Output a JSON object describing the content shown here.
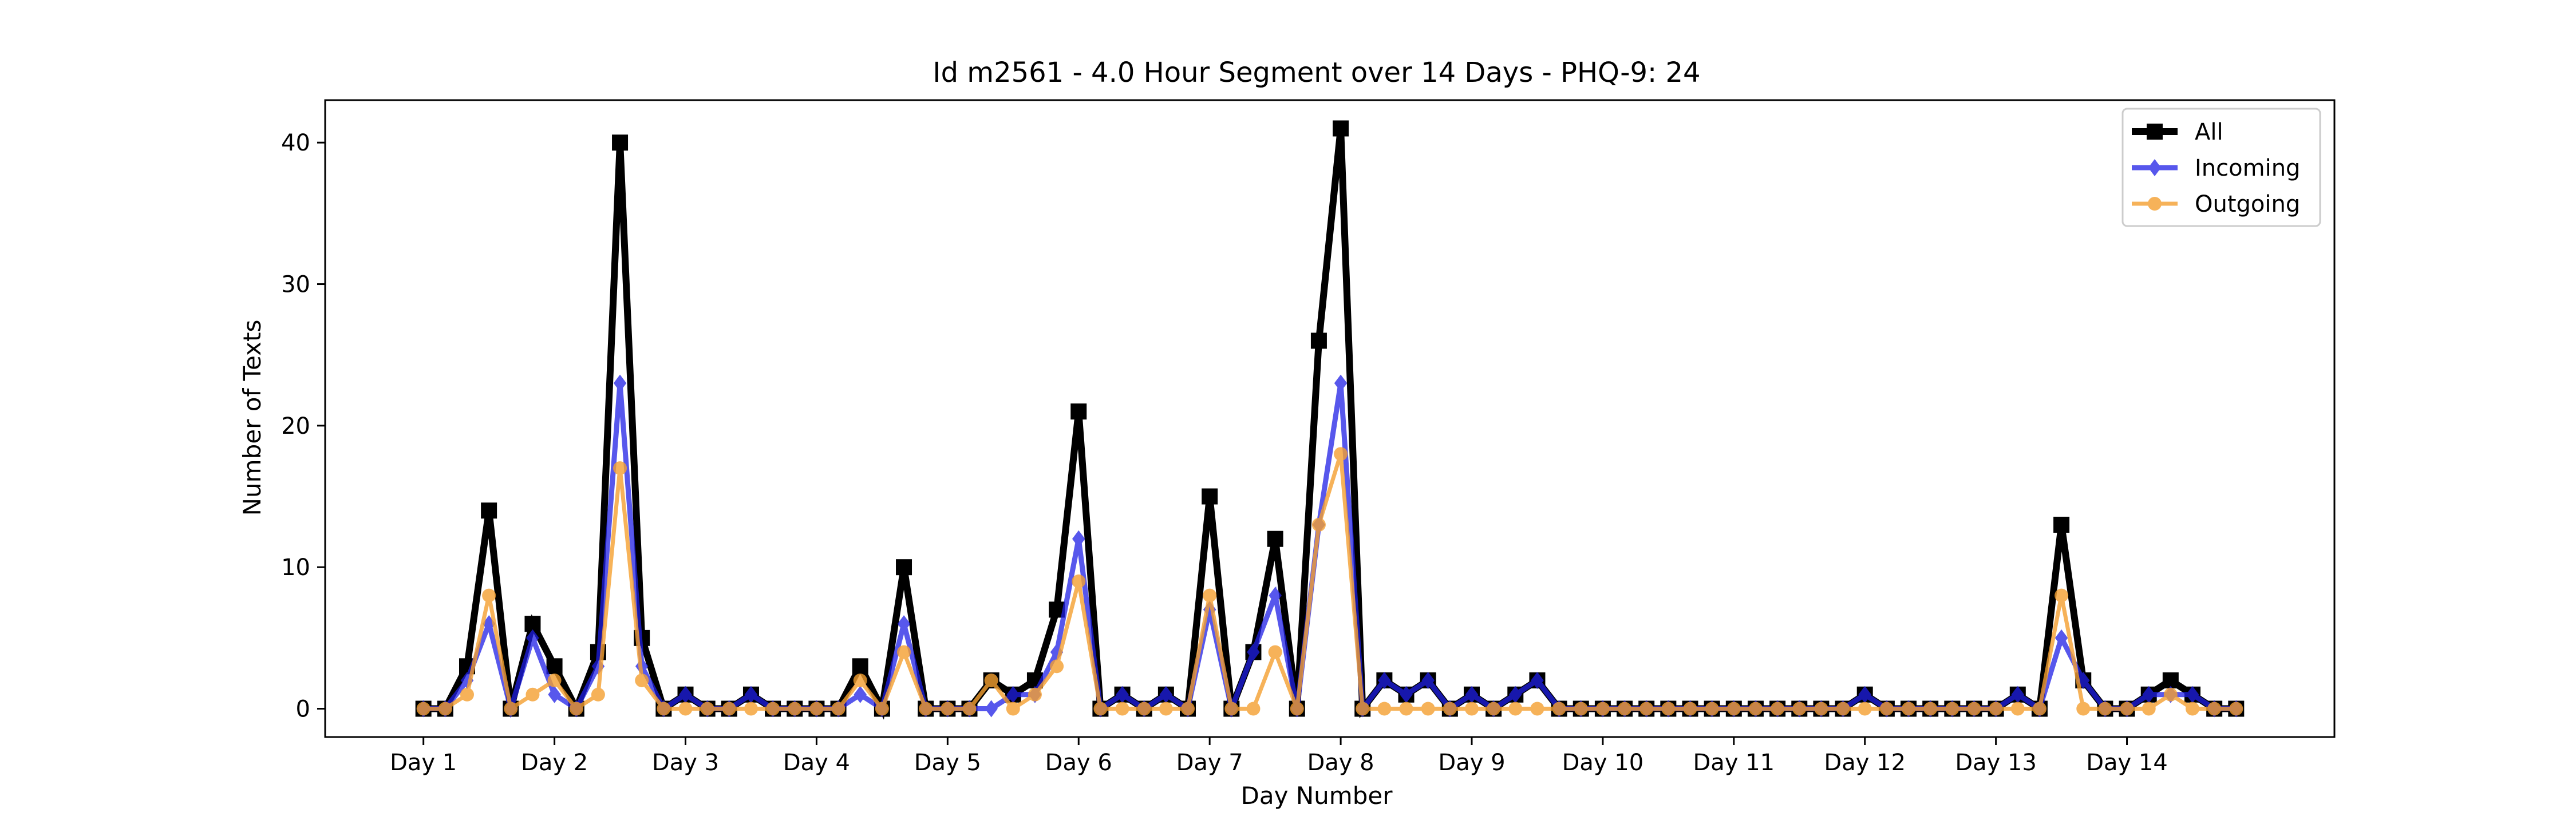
{
  "chart_data": {
    "type": "line",
    "title": "Id m2561 - 4.0 Hour Segment over 14 Days - PHQ-9: 24",
    "xlabel": "Day Number",
    "ylabel": "Number of Texts",
    "ylim": [
      -2,
      43
    ],
    "yticks": [
      0,
      10,
      20,
      30,
      40
    ],
    "x_tick_labels": [
      "Day 1",
      "Day 2",
      "Day 3",
      "Day 4",
      "Day 5",
      "Day 6",
      "Day 7",
      "Day 8",
      "Day 9",
      "Day 10",
      "Day 11",
      "Day 12",
      "Day 13",
      "Day 14"
    ],
    "segments_per_day": 6,
    "grid": false,
    "legend": "top-right",
    "series": [
      {
        "name": "All",
        "color": "#000000",
        "marker": "square",
        "values": [
          0,
          0,
          3,
          14,
          0,
          6,
          3,
          0,
          4,
          40,
          5,
          0,
          1,
          0,
          0,
          1,
          0,
          0,
          0,
          0,
          3,
          0,
          10,
          0,
          0,
          0,
          2,
          1,
          2,
          7,
          21,
          0,
          1,
          0,
          1,
          0,
          15,
          0,
          4,
          12,
          0,
          26,
          41,
          0,
          2,
          1,
          2,
          0,
          1,
          0,
          1,
          2,
          0,
          0,
          0,
          0,
          0,
          0,
          0,
          0,
          0,
          0,
          0,
          0,
          0,
          0,
          1,
          0,
          0,
          0,
          0,
          0,
          0,
          1,
          0,
          13,
          2,
          0,
          0,
          1,
          2,
          1,
          0,
          0
        ]
      },
      {
        "name": "Incoming",
        "color": "#1f1fe6",
        "marker": "diamond",
        "values": [
          0,
          0,
          2,
          6,
          0,
          5,
          1,
          0,
          3,
          23,
          3,
          0,
          1,
          0,
          0,
          1,
          0,
          0,
          0,
          0,
          1,
          0,
          6,
          0,
          0,
          0,
          0,
          1,
          1,
          4,
          12,
          0,
          1,
          0,
          1,
          0,
          7,
          0,
          4,
          8,
          0,
          13,
          23,
          0,
          2,
          1,
          2,
          0,
          1,
          0,
          1,
          2,
          0,
          0,
          0,
          0,
          0,
          0,
          0,
          0,
          0,
          0,
          0,
          0,
          0,
          0,
          1,
          0,
          0,
          0,
          0,
          0,
          0,
          1,
          0,
          5,
          2,
          0,
          0,
          1,
          1,
          1,
          0,
          0
        ]
      },
      {
        "name": "Outgoing",
        "color": "#f5a030",
        "marker": "circle",
        "values": [
          0,
          0,
          1,
          8,
          0,
          1,
          2,
          0,
          1,
          17,
          2,
          0,
          0,
          0,
          0,
          0,
          0,
          0,
          0,
          0,
          2,
          0,
          4,
          0,
          0,
          0,
          2,
          0,
          1,
          3,
          9,
          0,
          0,
          0,
          0,
          0,
          8,
          0,
          0,
          4,
          0,
          13,
          18,
          0,
          0,
          0,
          0,
          0,
          0,
          0,
          0,
          0,
          0,
          0,
          0,
          0,
          0,
          0,
          0,
          0,
          0,
          0,
          0,
          0,
          0,
          0,
          0,
          0,
          0,
          0,
          0,
          0,
          0,
          0,
          0,
          8,
          0,
          0,
          0,
          0,
          1,
          0,
          0,
          0
        ]
      }
    ]
  }
}
